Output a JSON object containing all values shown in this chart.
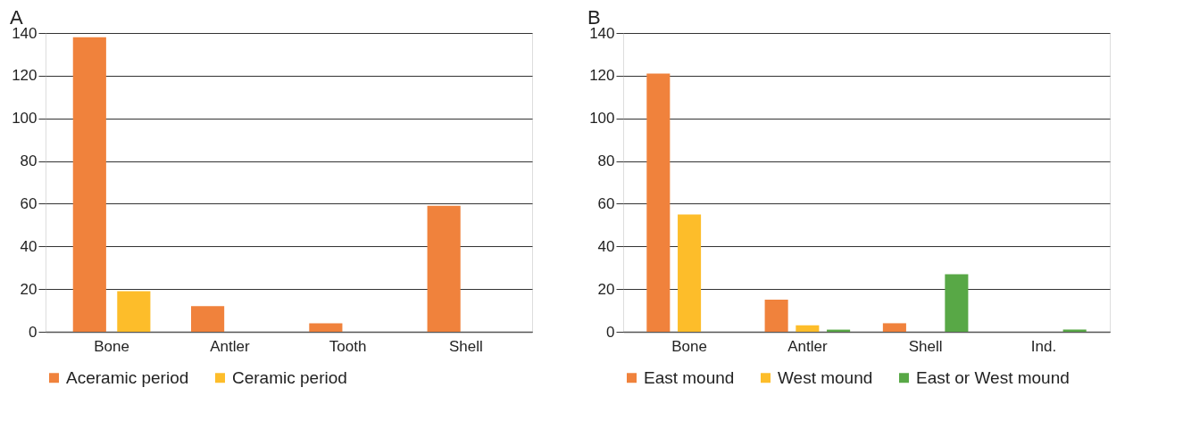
{
  "chart_data": [
    {
      "type": "bar",
      "title": "A",
      "categories": [
        "Bone",
        "Antler",
        "Tooth",
        "Shell"
      ],
      "series": [
        {
          "name": "Aceramic period",
          "color": "#f0823c",
          "values": [
            138,
            12,
            4,
            59
          ]
        },
        {
          "name": "Ceramic period",
          "color": "#fdbd2a",
          "values": [
            19,
            null,
            null,
            null
          ]
        }
      ],
      "ylim": [
        0,
        140
      ],
      "yticks": [
        0,
        20,
        40,
        60,
        80,
        100,
        120,
        140
      ],
      "grid": "y",
      "legend": "bottom"
    },
    {
      "type": "bar",
      "title": "B",
      "categories": [
        "Bone",
        "Antler",
        "Shell",
        "Ind."
      ],
      "series": [
        {
          "name": "East mound",
          "color": "#f0823c",
          "values": [
            121,
            15,
            4,
            null
          ]
        },
        {
          "name": "West mound",
          "color": "#fdbd2a",
          "values": [
            55,
            3,
            null,
            null
          ]
        },
        {
          "name": "East or West mound",
          "color": "#58a846",
          "values": [
            null,
            1,
            27,
            1
          ]
        }
      ],
      "ylim": [
        0,
        140
      ],
      "yticks": [
        0,
        20,
        40,
        60,
        80,
        100,
        120,
        140
      ],
      "grid": "y",
      "legend": "bottom"
    }
  ]
}
